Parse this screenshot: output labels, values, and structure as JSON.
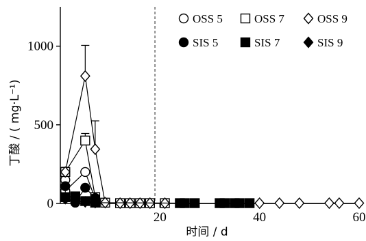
{
  "chart_data": {
    "type": "line",
    "xlabel": "时间 / d",
    "ylabel": "丁酸 / ( mg·L⁻¹)",
    "xlim": [
      0,
      60
    ],
    "ylim": [
      0,
      1250
    ],
    "x_ticks": [
      "20",
      "40",
      "60"
    ],
    "x_tick_values": [
      20,
      40,
      60
    ],
    "y_ticks": [
      "0",
      "500",
      "1000"
    ],
    "y_tick_values": [
      0,
      500,
      1000
    ],
    "vline_x": 19,
    "grid": false,
    "legend_position": "top-right",
    "legend_columns": 3,
    "series": [
      {
        "name": "OSS 5",
        "marker": "circle-open",
        "x": [
          1,
          1,
          5,
          7,
          9,
          12,
          14,
          16,
          18
        ],
        "y": [
          150,
          80,
          200,
          30,
          5,
          2,
          2,
          2,
          2
        ]
      },
      {
        "name": "OSS 7",
        "marker": "square-open",
        "x": [
          1,
          5,
          7,
          9,
          12,
          14,
          16,
          18,
          21
        ],
        "y": [
          200,
          400,
          40,
          5,
          2,
          2,
          2,
          2,
          2
        ],
        "error_plus": [
          20,
          45,
          0,
          0,
          0,
          0,
          0,
          0,
          0
        ]
      },
      {
        "name": "OSS 9",
        "marker": "diamond-open",
        "x": [
          1,
          5,
          7,
          9,
          12,
          14,
          16,
          18,
          21,
          40,
          44,
          48,
          54,
          56,
          60
        ],
        "y": [
          200,
          810,
          345,
          5,
          2,
          2,
          2,
          2,
          2,
          2,
          2,
          2,
          2,
          2,
          2
        ],
        "error_plus": [
          30,
          195,
          180,
          0,
          0,
          0,
          0,
          0,
          0,
          0,
          0,
          0,
          0,
          0,
          0
        ]
      },
      {
        "name": "SIS 5",
        "marker": "circle-filled",
        "x": [
          1,
          1,
          3,
          5,
          7
        ],
        "y": [
          110,
          35,
          5,
          100,
          35
        ]
      },
      {
        "name": "SIS 7",
        "marker": "square-filled",
        "x": [
          1,
          3,
          5,
          7,
          24,
          25,
          27,
          32,
          33,
          35,
          36,
          38
        ],
        "y": [
          40,
          45,
          15,
          5,
          2,
          2,
          2,
          2,
          2,
          2,
          2,
          2
        ]
      },
      {
        "name": "SIS 9",
        "marker": "diamond-filled",
        "x": [
          1,
          3,
          5,
          7
        ],
        "y": [
          30,
          15,
          10,
          5
        ]
      }
    ]
  }
}
